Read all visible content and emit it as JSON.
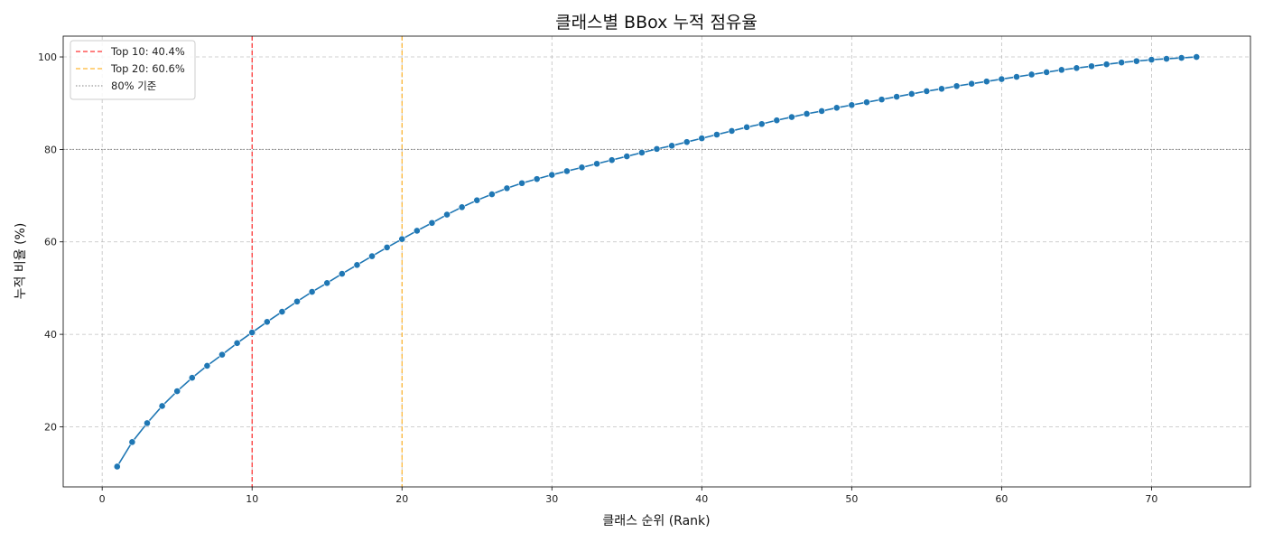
{
  "chart_data": {
    "type": "line",
    "title": "클래스별 BBox 누적 점유율",
    "xlabel": "클래스 순위 (Rank)",
    "ylabel": "누적 비율 (%)",
    "xlim": [
      -2.6,
      76.6
    ],
    "ylim": [
      7.0,
      104.5
    ],
    "xticks": [
      0,
      10,
      20,
      30,
      40,
      50,
      60,
      70
    ],
    "yticks": [
      20,
      40,
      60,
      80,
      100
    ],
    "grid": true,
    "legend_position": "upper-left",
    "series": [
      {
        "color": "#1f77b4",
        "marker": "circle",
        "x": [
          1,
          2,
          3,
          4,
          5,
          6,
          7,
          8,
          9,
          10,
          11,
          12,
          13,
          14,
          15,
          16,
          17,
          18,
          19,
          20,
          21,
          22,
          23,
          24,
          25,
          26,
          27,
          28,
          29,
          30,
          31,
          32,
          33,
          34,
          35,
          36,
          37,
          38,
          39,
          40,
          41,
          42,
          43,
          44,
          45,
          46,
          47,
          48,
          49,
          50,
          51,
          52,
          53,
          54,
          55,
          56,
          57,
          58,
          59,
          60,
          61,
          62,
          63,
          64,
          65,
          66,
          67,
          68,
          69,
          70,
          71,
          72,
          73
        ],
        "values": [
          11.4,
          16.7,
          20.8,
          24.5,
          27.7,
          30.6,
          33.2,
          35.6,
          38.1,
          40.4,
          42.7,
          44.9,
          47.1,
          49.2,
          51.1,
          53.1,
          55.0,
          56.9,
          58.8,
          60.6,
          62.4,
          64.1,
          65.9,
          67.5,
          69.0,
          70.3,
          71.6,
          72.7,
          73.6,
          74.5,
          75.3,
          76.1,
          76.9,
          77.7,
          78.5,
          79.3,
          80.1,
          80.8,
          81.6,
          82.4,
          83.2,
          84.0,
          84.8,
          85.5,
          86.3,
          87.0,
          87.7,
          88.3,
          89.0,
          89.6,
          90.2,
          90.8,
          91.4,
          92.0,
          92.6,
          93.1,
          93.7,
          94.2,
          94.7,
          95.2,
          95.7,
          96.2,
          96.7,
          97.2,
          97.6,
          98.0,
          98.4,
          98.8,
          99.1,
          99.4,
          99.6,
          99.8,
          100.0
        ]
      }
    ],
    "reference_lines": [
      {
        "orientation": "vertical",
        "value": 10,
        "color": "#ff0000",
        "style": "dashed",
        "label": "Top 10: 40.4%"
      },
      {
        "orientation": "vertical",
        "value": 20,
        "color": "#ffa500",
        "style": "dashed",
        "label": "Top 20: 60.6%"
      },
      {
        "orientation": "horizontal",
        "value": 80,
        "color": "#808080",
        "style": "dotted",
        "label": "80% 기준"
      }
    ]
  }
}
